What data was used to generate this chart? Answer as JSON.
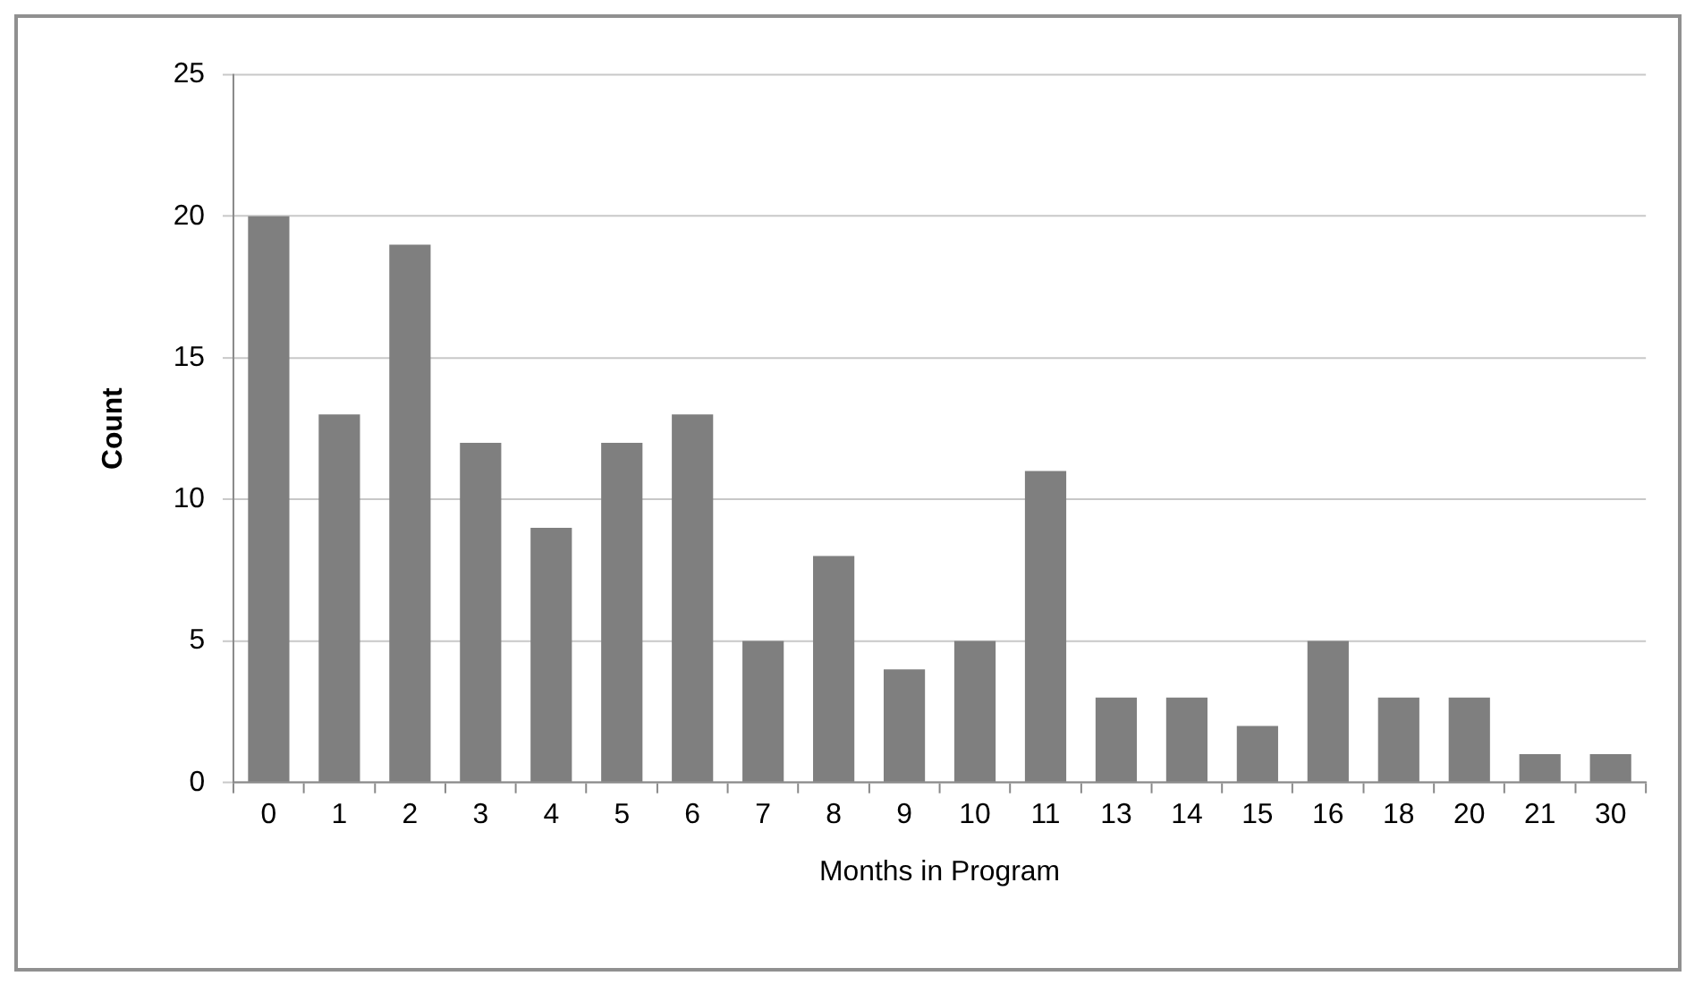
{
  "chart_data": {
    "type": "bar",
    "xlabel": "Months in Program",
    "ylabel": "Count",
    "categories": [
      "0",
      "1",
      "2",
      "3",
      "4",
      "5",
      "6",
      "7",
      "8",
      "9",
      "10",
      "11",
      "13",
      "14",
      "15",
      "16",
      "18",
      "20",
      "21",
      "30"
    ],
    "values": [
      20,
      13,
      19,
      12,
      9,
      12,
      13,
      5,
      8,
      4,
      5,
      11,
      3,
      3,
      2,
      5,
      3,
      3,
      1,
      1
    ],
    "color": "#7f7f7f",
    "ylim": [
      0,
      25
    ],
    "yticks": [
      0,
      5,
      10,
      15,
      20,
      25
    ],
    "grid": "y",
    "legend": false
  }
}
